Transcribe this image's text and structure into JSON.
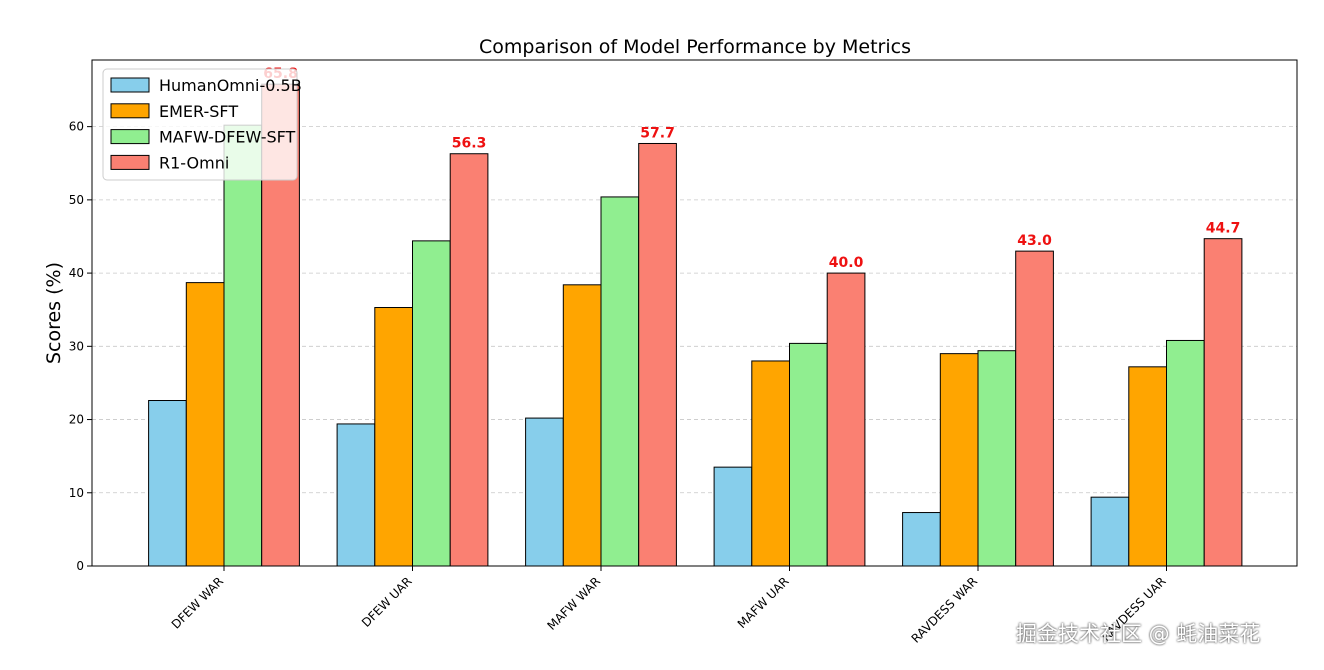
{
  "watermark": "掘金技术社区 @ 蚝油菜花",
  "chart_data": {
    "type": "bar",
    "title": "Comparison of Model Performance by Metrics",
    "xlabel": "",
    "ylabel": "Scores (%)",
    "categories": [
      "DFEW WAR",
      "DFEW UAR",
      "MAFW WAR",
      "MAFW UAR",
      "RAVDESS WAR",
      "RAVDESS UAR"
    ],
    "series": [
      {
        "name": "HumanOmni-0.5B",
        "color": "#87ceeb",
        "values": [
          22.6,
          19.4,
          20.2,
          13.5,
          7.3,
          9.4
        ]
      },
      {
        "name": "EMER-SFT",
        "color": "#ffa500",
        "values": [
          38.7,
          35.3,
          38.4,
          28.0,
          29.0,
          27.2
        ]
      },
      {
        "name": "MAFW-DFEW-SFT",
        "color": "#90ee90",
        "values": [
          60.2,
          44.4,
          50.4,
          30.4,
          29.4,
          30.8
        ]
      },
      {
        "name": "R1-Omni",
        "color": "#fa8072",
        "values": [
          65.8,
          56.3,
          57.7,
          40.0,
          43.0,
          44.7
        ]
      }
    ],
    "data_labels_series": "R1-Omni",
    "data_label_color": "#ee1111",
    "ylim": [
      0,
      69.1
    ],
    "yticks": [
      0,
      10,
      20,
      30,
      40,
      50,
      60
    ],
    "grid": "horizontal dashed",
    "legend": "top-left"
  }
}
